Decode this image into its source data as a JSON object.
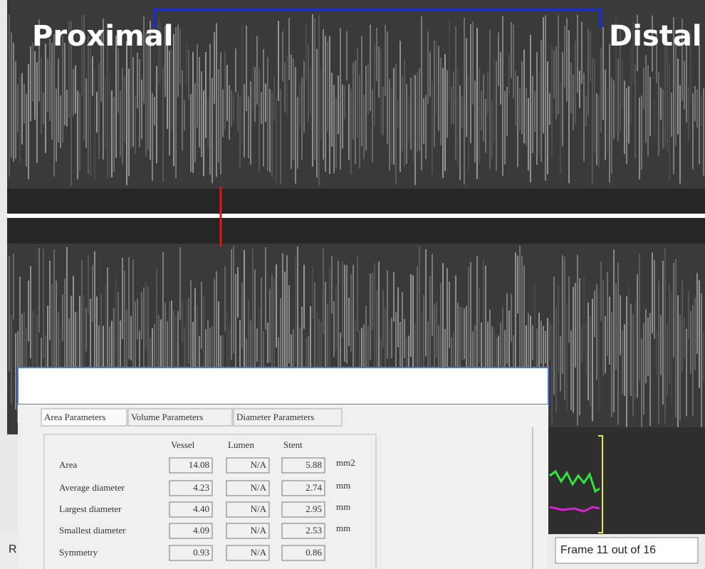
{
  "image_labels": {
    "proximal": "Proximal",
    "distal": "Distal"
  },
  "tabs": [
    "Area Parameters",
    "Volume Parameters",
    "Diameter Parameters"
  ],
  "table": {
    "columns": [
      "Vessel",
      "Lumen",
      "Stent"
    ],
    "rows": [
      {
        "label": "Area",
        "values": [
          "14.08",
          "N/A",
          "5.88"
        ],
        "unit": "mm2"
      },
      {
        "label": "Average diameter",
        "values": [
          "4.23",
          "N/A",
          "2.74"
        ],
        "unit": "mm"
      },
      {
        "label": "Largest diameter",
        "values": [
          "4.40",
          "N/A",
          "2.95"
        ],
        "unit": "mm"
      },
      {
        "label": "Smallest diameter",
        "values": [
          "4.09",
          "N/A",
          "2.53"
        ],
        "unit": "mm"
      },
      {
        "label": "Symmetry",
        "values": [
          "0.93",
          "N/A",
          "0.86"
        ]
      }
    ]
  },
  "status": {
    "left": "R",
    "frame": "Frame 11 out of 16"
  }
}
